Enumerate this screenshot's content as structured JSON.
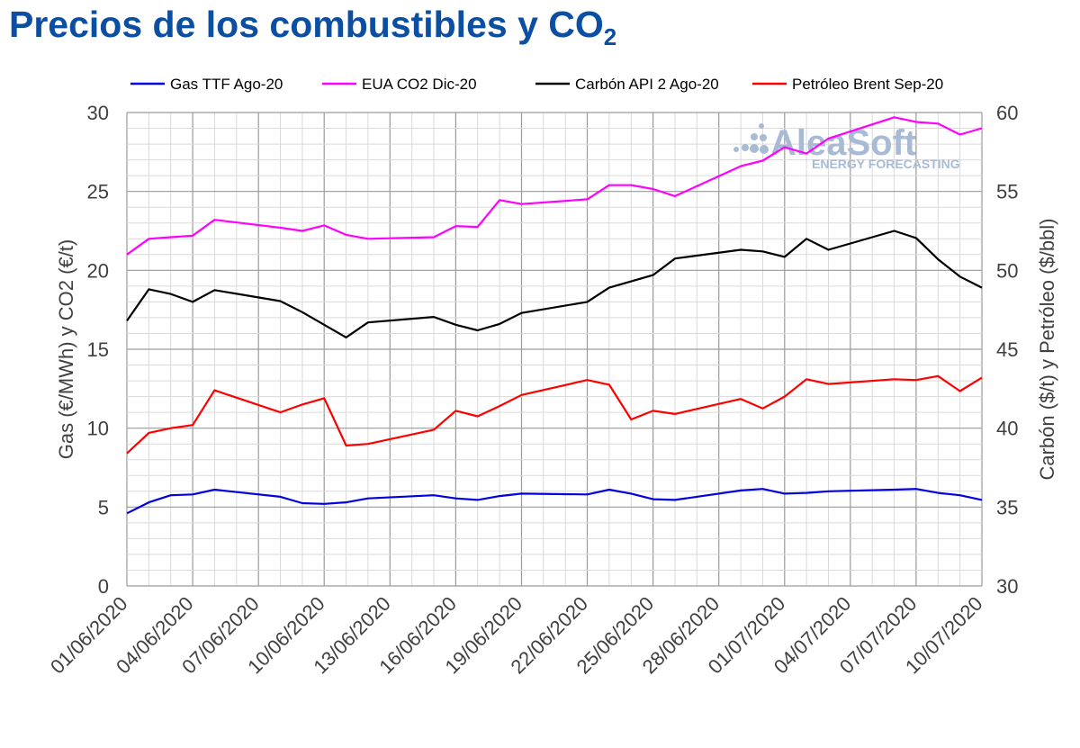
{
  "title": {
    "main": "Precios de los combustibles y CO",
    "sub": "2"
  },
  "watermark": {
    "brand": "AleaSoft",
    "tagline": "ENERGY FORECASTING"
  },
  "chart_data": {
    "type": "line",
    "xlabel": "",
    "ylabel_left": "Gas (€/MWh) y CO2 (€/t)",
    "ylabel_right": "Carbón ($/t) y Petróleo ($/bbl)",
    "ylim_left": [
      0,
      30
    ],
    "ylim_right": [
      30,
      60
    ],
    "yticks_left": [
      "0",
      "5",
      "10",
      "15",
      "20",
      "25",
      "30"
    ],
    "yticks_right": [
      "30",
      "35",
      "40",
      "45",
      "50",
      "55",
      "60"
    ],
    "grid": true,
    "legend_position": "top",
    "x_tick_labels": [
      "01/06/2020",
      "04/06/2020",
      "07/06/2020",
      "10/06/2020",
      "13/06/2020",
      "16/06/2020",
      "19/06/2020",
      "22/06/2020",
      "25/06/2020",
      "28/06/2020",
      "01/07/2020",
      "04/07/2020",
      "07/07/2020",
      "10/07/2020"
    ],
    "x": [
      "01/06/2020",
      "02/06/2020",
      "03/06/2020",
      "04/06/2020",
      "05/06/2020",
      "08/06/2020",
      "09/06/2020",
      "10/06/2020",
      "11/06/2020",
      "12/06/2020",
      "15/06/2020",
      "16/06/2020",
      "17/06/2020",
      "18/06/2020",
      "19/06/2020",
      "22/06/2020",
      "23/06/2020",
      "24/06/2020",
      "25/06/2020",
      "26/06/2020",
      "29/06/2020",
      "30/06/2020",
      "01/07/2020",
      "02/07/2020",
      "03/07/2020",
      "06/07/2020",
      "07/07/2020",
      "08/07/2020",
      "09/07/2020",
      "10/07/2020"
    ],
    "series": [
      {
        "name": "Gas TTF Ago-20",
        "axis": "left",
        "color": "#0000e0",
        "values": [
          4.6,
          5.3,
          5.75,
          5.8,
          6.1,
          5.65,
          5.25,
          5.2,
          5.3,
          5.55,
          5.75,
          5.55,
          5.45,
          5.7,
          5.85,
          5.8,
          6.1,
          5.85,
          5.5,
          5.45,
          6.05,
          6.15,
          5.85,
          5.9,
          6.0,
          6.1,
          6.15,
          5.9,
          5.75,
          5.45
        ]
      },
      {
        "name": "EUA CO2 Dic-20",
        "axis": "left",
        "color": "#ff00ff",
        "values": [
          21.0,
          22.0,
          22.1,
          22.2,
          23.2,
          22.7,
          22.5,
          22.85,
          22.25,
          22.0,
          22.1,
          22.8,
          22.75,
          24.45,
          24.2,
          24.5,
          25.4,
          25.4,
          25.15,
          24.7,
          26.6,
          26.95,
          27.8,
          27.4,
          28.35,
          29.7,
          29.4,
          29.3,
          28.6,
          29.0
        ]
      },
      {
        "name": "Carbón API 2 Ago-20",
        "axis": "right",
        "color": "#000000",
        "values": [
          46.8,
          48.8,
          48.5,
          48.0,
          48.75,
          48.05,
          47.35,
          46.55,
          45.75,
          46.7,
          47.05,
          46.55,
          46.2,
          46.6,
          47.3,
          48.0,
          48.9,
          49.3,
          49.7,
          50.75,
          51.3,
          51.2,
          50.85,
          52.0,
          51.3,
          52.5,
          52.05,
          50.7,
          49.6,
          48.9
        ]
      },
      {
        "name": "Petróleo Brent Sep-20",
        "axis": "right",
        "color": "#ff0000",
        "values": [
          38.4,
          39.7,
          40.0,
          40.2,
          42.4,
          41.0,
          41.5,
          41.9,
          38.9,
          39.0,
          39.9,
          41.1,
          40.75,
          41.4,
          42.1,
          43.05,
          42.75,
          40.55,
          41.1,
          40.9,
          41.85,
          41.25,
          42.0,
          43.1,
          42.8,
          43.1,
          43.05,
          43.3,
          42.35,
          43.2
        ]
      }
    ]
  }
}
